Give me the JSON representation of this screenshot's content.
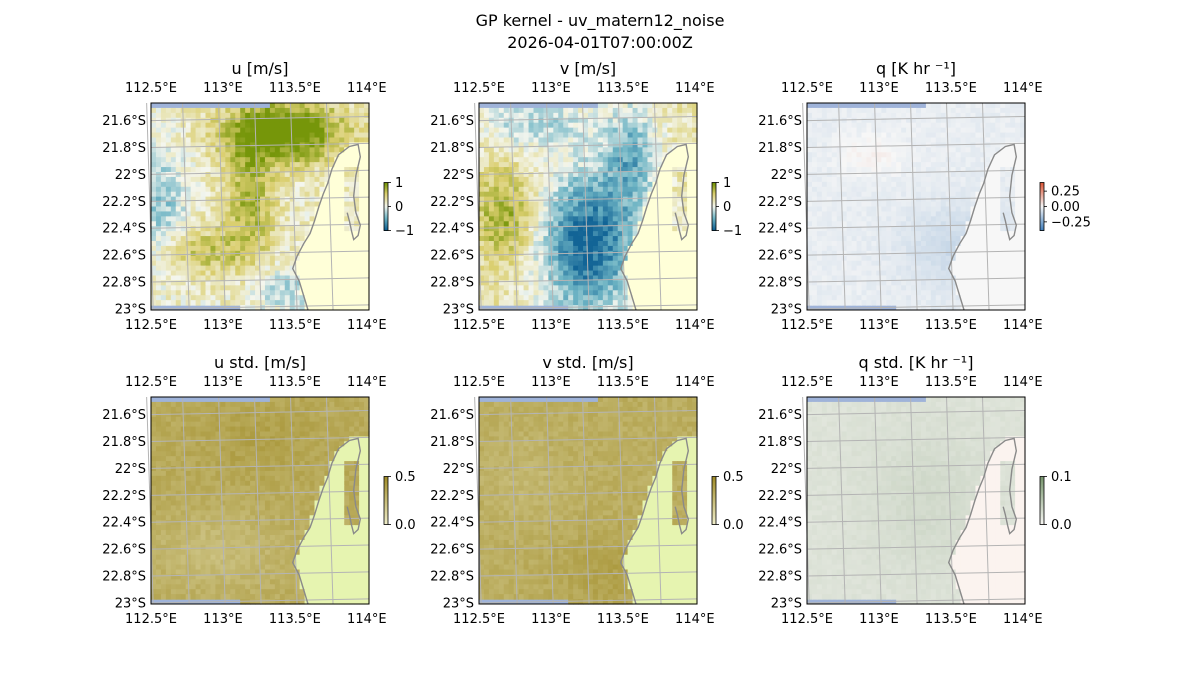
{
  "figure": {
    "title_line1": "GP kernel - uv_matern12_noise",
    "title_line2": "2026-04-01T07:00:00Z"
  },
  "colors": {
    "ocean": "#9fb3d9",
    "land_mask": "#ffffd8",
    "land_mask_std": "#e6f4b0",
    "land_mask_q": "#f7f7f7",
    "land_mask_qstd": "#fbf3ef",
    "coastline": "#8a8a8a",
    "gridline": "#b4b4b4"
  },
  "chart_data": [
    {
      "type": "heatmap",
      "title": "u [m/s]",
      "colormap": "diverging teal-white-olive",
      "colorbar": {
        "ticks": [
          "1",
          "0",
          "−1"
        ],
        "range": [
          -1,
          1
        ]
      },
      "x_ticks": [
        "112.5°E",
        "113°E",
        "113.5°E",
        "114°E"
      ],
      "y_ticks": [
        "21.6°S",
        "21.8°S",
        "22°S",
        "22.2°S",
        "22.4°S",
        "22.6°S",
        "22.8°S",
        "23°S"
      ],
      "lon_range": [
        112.45,
        114.2
      ],
      "lat_range": [
        -23.0,
        -21.45
      ]
    },
    {
      "type": "heatmap",
      "title": "v [m/s]",
      "colormap": "diverging teal-white-olive",
      "colorbar": {
        "ticks": [
          "1",
          "0",
          "−1"
        ],
        "range": [
          -1,
          1
        ]
      },
      "x_ticks": [
        "112.5°E",
        "113°E",
        "113.5°E",
        "114°E"
      ],
      "y_ticks": [
        "21.6°S",
        "21.8°S",
        "22°S",
        "22.2°S",
        "22.4°S",
        "22.6°S",
        "22.8°S",
        "23°S"
      ],
      "lon_range": [
        112.45,
        114.2
      ],
      "lat_range": [
        -23.0,
        -21.45
      ]
    },
    {
      "type": "heatmap",
      "title": "q [K hr ⁻¹]",
      "colormap": "diverging blue-white-red",
      "colorbar": {
        "ticks": [
          "0.25",
          "0.00",
          "−0.25"
        ],
        "range": [
          -0.35,
          0.35
        ]
      },
      "x_ticks": [
        "112.5°E",
        "113°E",
        "113.5°E",
        "114°E"
      ],
      "y_ticks": [
        "21.6°S",
        "21.8°S",
        "22°S",
        "22.2°S",
        "22.4°S",
        "22.6°S",
        "22.8°S",
        "23°S"
      ],
      "lon_range": [
        112.45,
        114.2
      ],
      "lat_range": [
        -23.0,
        -21.45
      ]
    },
    {
      "type": "heatmap",
      "title": "u std. [m/s]",
      "colormap": "sequential white-olive",
      "colorbar": {
        "ticks": [
          "0.5",
          "0.0"
        ],
        "range": [
          0,
          0.5
        ]
      },
      "x_ticks": [
        "112.5°E",
        "113°E",
        "113.5°E",
        "114°E"
      ],
      "y_ticks": [
        "21.6°S",
        "21.8°S",
        "22°S",
        "22.2°S",
        "22.4°S",
        "22.6°S",
        "22.8°S",
        "23°S"
      ],
      "lon_range": [
        112.45,
        114.2
      ],
      "lat_range": [
        -23.0,
        -21.45
      ]
    },
    {
      "type": "heatmap",
      "title": "v std. [m/s]",
      "colormap": "sequential white-olive",
      "colorbar": {
        "ticks": [
          "0.5",
          "0.0"
        ],
        "range": [
          0,
          0.5
        ]
      },
      "x_ticks": [
        "112.5°E",
        "113°E",
        "113.5°E",
        "114°E"
      ],
      "y_ticks": [
        "21.6°S",
        "21.8°S",
        "22°S",
        "22.2°S",
        "22.4°S",
        "22.6°S",
        "22.8°S",
        "23°S"
      ],
      "lon_range": [
        112.45,
        114.2
      ],
      "lat_range": [
        -23.0,
        -21.45
      ]
    },
    {
      "type": "heatmap",
      "title": "q std. [K hr ⁻¹]",
      "colormap": "sequential white-green",
      "colorbar": {
        "ticks": [
          "0.1",
          "0.0"
        ],
        "range": [
          0,
          0.1
        ]
      },
      "x_ticks": [
        "112.5°E",
        "113°E",
        "113.5°E",
        "114°E"
      ],
      "y_ticks": [
        "21.6°S",
        "21.8°S",
        "22°S",
        "22.2°S",
        "22.4°S",
        "22.6°S",
        "22.8°S",
        "23°S"
      ],
      "lon_range": [
        112.45,
        114.2
      ],
      "lat_range": [
        -23.0,
        -21.45
      ]
    }
  ]
}
